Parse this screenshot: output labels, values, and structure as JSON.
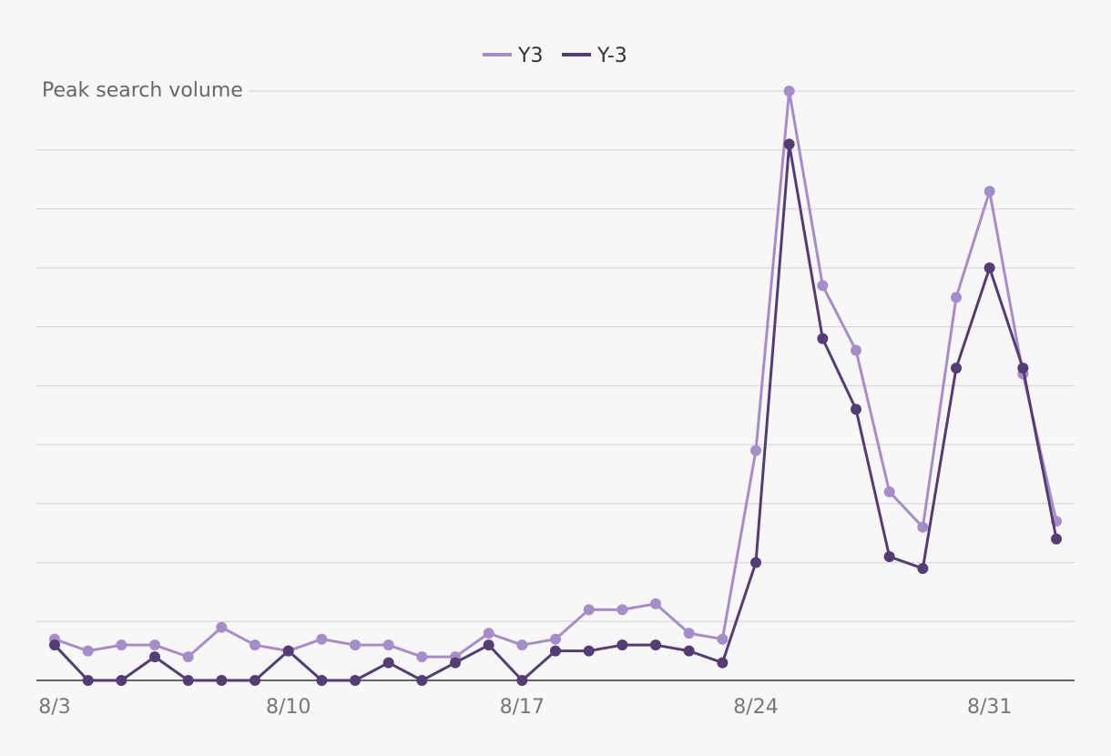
{
  "chart_data": {
    "type": "line",
    "title": "",
    "xlabel": "",
    "ylabel": "Peak search volume",
    "ylim": [
      0,
      100
    ],
    "grid": true,
    "legend_position": "top-center",
    "x": [
      "8/3",
      "8/4",
      "8/5",
      "8/6",
      "8/7",
      "8/8",
      "8/9",
      "8/10",
      "8/11",
      "8/12",
      "8/13",
      "8/14",
      "8/15",
      "8/16",
      "8/17",
      "8/18",
      "8/19",
      "8/20",
      "8/21",
      "8/22",
      "8/23",
      "8/24",
      "8/25",
      "8/26",
      "8/27",
      "8/28",
      "8/29",
      "8/30",
      "8/31",
      "9/1",
      "9/2"
    ],
    "x_tick_labels": [
      "8/3",
      "8/10",
      "8/17",
      "8/24",
      "8/31"
    ],
    "series": [
      {
        "name": "Y3",
        "color": "#a78ccb",
        "values": [
          7,
          5,
          6,
          6,
          4,
          9,
          6,
          5,
          7,
          6,
          6,
          4,
          4,
          8,
          6,
          7,
          12,
          12,
          13,
          8,
          7,
          39,
          100,
          67,
          56,
          32,
          26,
          65,
          83,
          52,
          27
        ]
      },
      {
        "name": "Y-3",
        "color": "#553c77",
        "values": [
          6,
          0,
          0,
          4,
          0,
          0,
          0,
          5,
          0,
          0,
          3,
          0,
          3,
          6,
          0,
          5,
          5,
          6,
          6,
          5,
          3,
          20,
          91,
          58,
          46,
          21,
          19,
          53,
          70,
          53,
          24
        ]
      }
    ]
  }
}
